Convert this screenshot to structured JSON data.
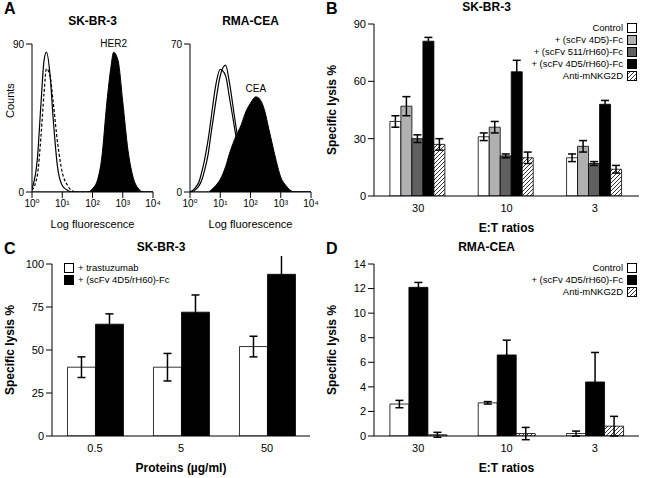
{
  "chart_data": [
    {
      "panel": "A",
      "type": "line",
      "title": "SK-BR-3",
      "xlabel": "Log fluorescence",
      "ylabel": "Counts",
      "log": "x",
      "x": [
        1,
        1.5,
        2,
        2.5,
        3,
        4,
        5,
        7,
        10,
        15,
        20,
        30,
        50,
        70,
        100,
        150,
        200,
        300,
        400,
        500,
        700,
        1000,
        1500,
        2000,
        3000,
        5000,
        10000
      ],
      "xlim": [
        1,
        10000
      ],
      "xticks": [
        {
          "value": 1,
          "label": "10⁰"
        },
        {
          "value": 10,
          "label": "10¹"
        },
        {
          "value": 100,
          "label": "10²"
        },
        {
          "value": 1000,
          "label": "10³"
        },
        {
          "value": 10000,
          "label": "10⁴"
        }
      ],
      "ylim": [
        0,
        90
      ],
      "yticks": [
        0,
        90
      ],
      "series": [
        {
          "type": "line",
          "color": "#000000",
          "line_style": "solid",
          "values": [
            2,
            20,
            55,
            80,
            85,
            70,
            45,
            15,
            4,
            1,
            0,
            0,
            0,
            0,
            0,
            0,
            0,
            0,
            0,
            0,
            0,
            0,
            0,
            0,
            0,
            0,
            0
          ]
        },
        {
          "type": "line",
          "color": "#000000",
          "line_style": "dashed",
          "values": [
            1,
            10,
            35,
            60,
            75,
            70,
            55,
            30,
            12,
            4,
            1,
            0,
            0,
            0,
            0,
            0,
            0,
            0,
            0,
            0,
            0,
            0,
            0,
            0,
            0,
            0,
            0
          ]
        },
        {
          "name": "HER2",
          "type": "area",
          "color": "#000000",
          "values": [
            0,
            0,
            0,
            0,
            0,
            0,
            0,
            0,
            0,
            0,
            0,
            0,
            0,
            0,
            2,
            8,
            20,
            55,
            75,
            85,
            80,
            55,
            25,
            12,
            3,
            0,
            0
          ]
        }
      ]
    },
    {
      "type": "line",
      "title": "RMA-CEA",
      "xlabel": "Log fluorescence",
      "log": "x",
      "x": [
        1,
        1.5,
        2,
        2.5,
        3,
        4,
        5,
        7,
        10,
        15,
        20,
        30,
        50,
        70,
        100,
        150,
        200,
        300,
        400,
        500,
        700,
        1000,
        1500,
        2000,
        3000,
        5000,
        10000
      ],
      "xlim": [
        1,
        10000
      ],
      "xticks": [
        {
          "value": 1,
          "label": "10⁰"
        },
        {
          "value": 10,
          "label": "10¹"
        },
        {
          "value": 100,
          "label": "10²"
        },
        {
          "value": 1000,
          "label": "10³"
        },
        {
          "value": 10000,
          "label": "10⁴"
        }
      ],
      "ylim": [
        0,
        70
      ],
      "yticks": [
        0,
        70
      ],
      "series": [
        {
          "type": "line",
          "color": "#000000",
          "line_style": "solid",
          "values": [
            0,
            2,
            5,
            10,
            15,
            25,
            35,
            50,
            58,
            55,
            45,
            30,
            12,
            5,
            2,
            0,
            0,
            0,
            0,
            0,
            0,
            0,
            0,
            0,
            0,
            0,
            0
          ]
        },
        {
          "type": "line",
          "color": "#000000",
          "line_style": "solid",
          "values": [
            0,
            1,
            3,
            6,
            10,
            18,
            28,
            42,
            55,
            60,
            52,
            35,
            15,
            6,
            2,
            1,
            0,
            0,
            0,
            0,
            0,
            0,
            0,
            0,
            0,
            0,
            0
          ]
        },
        {
          "name": "CEA",
          "type": "area",
          "color": "#000000",
          "values": [
            0,
            0,
            0,
            0,
            0,
            0,
            1,
            3,
            6,
            12,
            18,
            25,
            32,
            38,
            42,
            45,
            44,
            38,
            30,
            24,
            15,
            7,
            3,
            1,
            0,
            0,
            0
          ]
        }
      ]
    },
    {
      "panel": "B",
      "type": "bar",
      "title": "SK-BR-3",
      "xlabel": "E:T ratios",
      "ylabel": "Specific lysis %",
      "categories": [
        "30",
        "10",
        "3"
      ],
      "ylim": [
        0,
        90
      ],
      "yticks": [
        0,
        30,
        60,
        90
      ],
      "legend": "upper right",
      "series": [
        {
          "name": "Control",
          "color": "#ffffff",
          "values": [
            39,
            31,
            20
          ],
          "errors": [
            3,
            2,
            2
          ]
        },
        {
          "name": "+ (scFv 4D5)-Fc",
          "color": "#b0b0b0",
          "values": [
            47,
            36,
            26
          ],
          "errors": [
            5,
            3,
            3
          ]
        },
        {
          "name": "+ (scFv 511/rH60)-Fc",
          "color": "#606060",
          "values": [
            30,
            21,
            17
          ],
          "errors": [
            2,
            1,
            1
          ]
        },
        {
          "name": "+ (scFv 4D5/rH60)-Fc",
          "color": "#000000",
          "values": [
            81,
            65,
            48
          ],
          "errors": [
            2,
            6,
            2
          ]
        },
        {
          "name": "Anti-mNKG2D",
          "color": "#ffffff",
          "line_style": "hatched",
          "values": [
            27,
            20,
            14
          ],
          "errors": [
            3,
            3,
            2
          ]
        }
      ]
    },
    {
      "panel": "C",
      "type": "bar",
      "title": "SK-BR-3",
      "xlabel": "Proteins (µg/ml)",
      "ylabel": "Specific lysis %",
      "categories": [
        "0.5",
        "5",
        "50"
      ],
      "ylim": [
        0,
        100
      ],
      "yticks": [
        0,
        25,
        50,
        75,
        100
      ],
      "legend": "upper left",
      "series": [
        {
          "name": "+ trastuzumab",
          "color": "#ffffff",
          "values": [
            40,
            40,
            52
          ],
          "errors": [
            6,
            8,
            6
          ]
        },
        {
          "name": "+ (scFv 4D5/rH60)-Fc",
          "color": "#000000",
          "values": [
            65,
            72,
            94
          ],
          "errors": [
            6,
            10,
            13
          ]
        }
      ]
    },
    {
      "panel": "D",
      "type": "bar",
      "title": "RMA-CEA",
      "xlabel": "E:T ratios",
      "ylabel": "Specific lysis %",
      "categories": [
        "30",
        "10",
        "3"
      ],
      "ylim": [
        0,
        14
      ],
      "yticks": [
        0,
        2,
        4,
        6,
        8,
        10,
        12,
        14
      ],
      "legend": "upper right",
      "series": [
        {
          "name": "Control",
          "color": "#ffffff",
          "values": [
            2.6,
            2.7,
            0.2
          ],
          "errors": [
            0.3,
            0.1,
            0.2
          ]
        },
        {
          "name": "+ (scFv 4D5/rH60)-Fc",
          "color": "#000000",
          "values": [
            12.1,
            6.6,
            4.4
          ],
          "errors": [
            0.4,
            1.2,
            2.4
          ]
        },
        {
          "name": "Anti-mNKG2D",
          "color": "#ffffff",
          "line_style": "hatched",
          "values": [
            0.1,
            0.2,
            0.8
          ],
          "errors": [
            0.2,
            0.5,
            0.8
          ]
        }
      ]
    }
  ]
}
